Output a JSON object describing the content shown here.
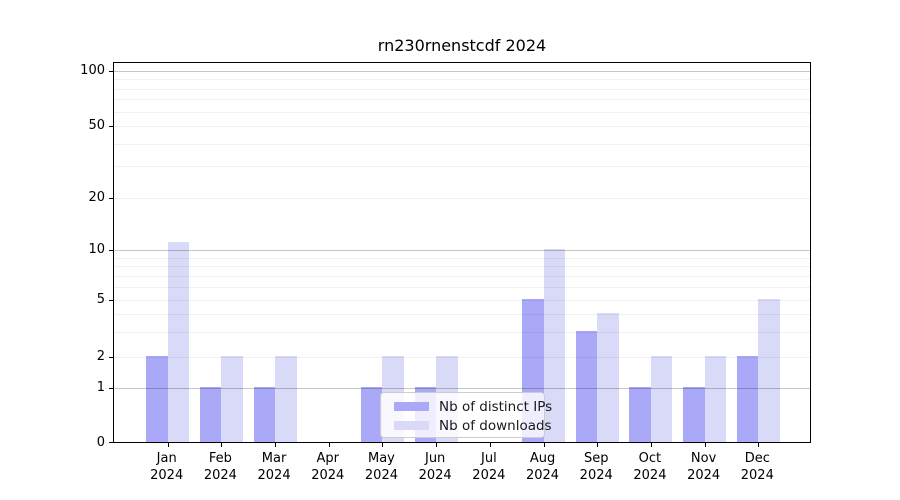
{
  "chart_data": {
    "type": "bar",
    "title": "rn230rnenstcdf 2024",
    "months": [
      "Jan",
      "Feb",
      "Mar",
      "Apr",
      "May",
      "Jun",
      "Jul",
      "Aug",
      "Sep",
      "Oct",
      "Nov",
      "Dec"
    ],
    "year_label": "2024",
    "series": [
      {
        "name": "Nb of distinct IPs",
        "color": "#a9a9f8",
        "values": [
          2,
          1,
          1,
          0,
          1,
          1,
          0,
          5,
          3,
          1,
          1,
          2
        ]
      },
      {
        "name": "Nb of downloads",
        "color": "#d9d9f8",
        "values": [
          11,
          2,
          2,
          0,
          2,
          2,
          0,
          10,
          4,
          2,
          2,
          5
        ]
      }
    ],
    "ytick_values": [
      0,
      1,
      2,
      5,
      10,
      20,
      50,
      100
    ],
    "y_major_gridlines": [
      1,
      10,
      100
    ],
    "y_minor_gridlines": [
      2,
      3,
      4,
      5,
      6,
      7,
      8,
      9,
      20,
      30,
      40,
      50,
      60,
      70,
      80,
      90
    ],
    "yscale": "symlog",
    "ylim": [
      0,
      112
    ],
    "xlabel": "",
    "ylabel": "",
    "grid": "horizontal major+minor",
    "legend_position": "lower center",
    "colors": {
      "grid_major": "rgba(0,0,0,0.22)",
      "grid_minor": "rgba(0,0,0,0.055)",
      "axis": "#000000",
      "background": "#ffffff"
    }
  }
}
